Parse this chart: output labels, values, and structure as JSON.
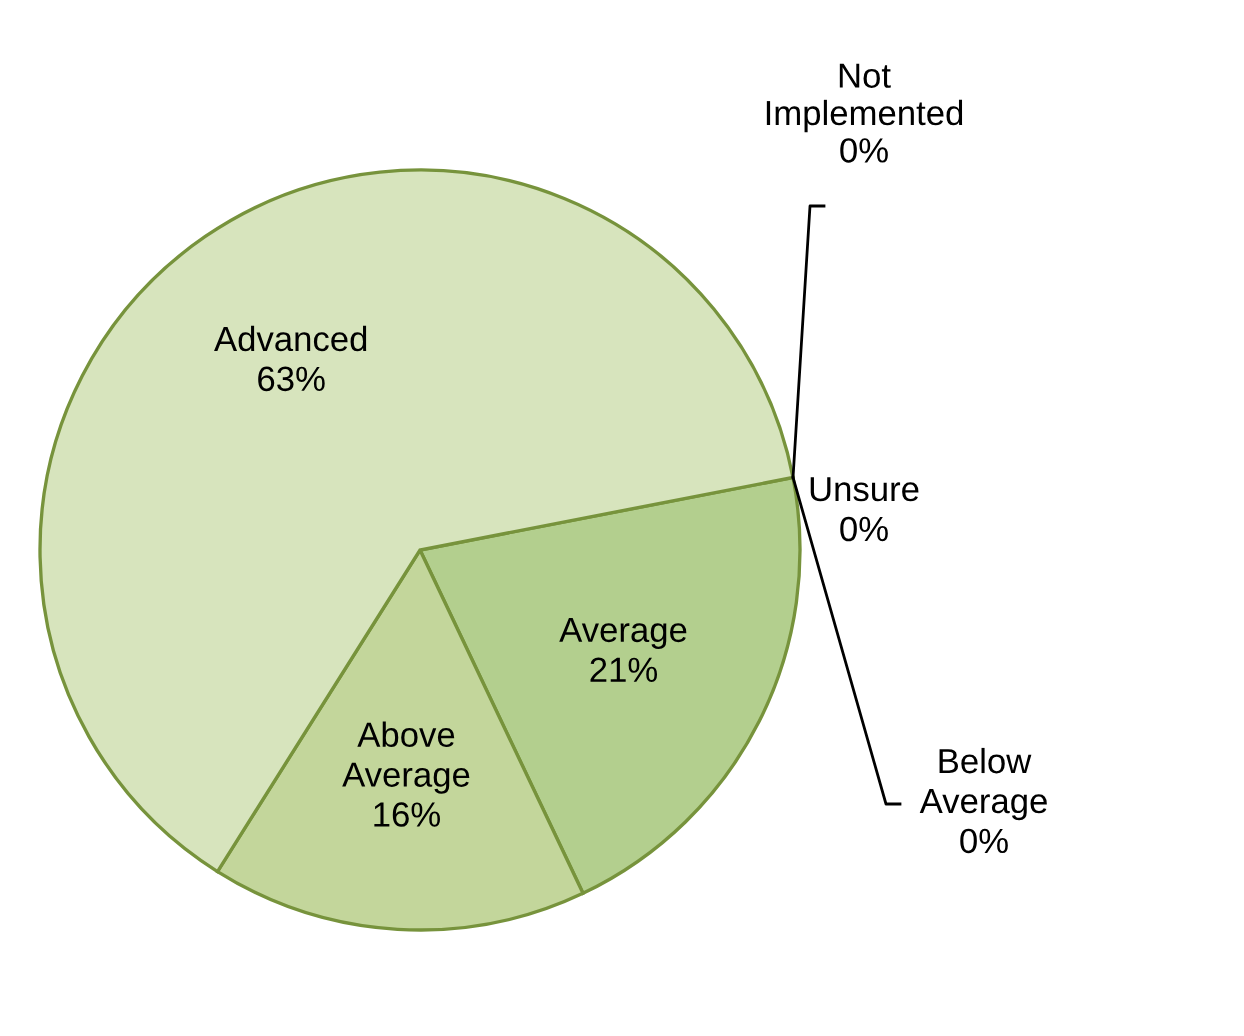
{
  "chart_data": {
    "type": "pie",
    "categories": [
      "Average",
      "Above Average",
      "Advanced",
      "Not Implemented",
      "Unsure",
      "Below Average"
    ],
    "values": [
      21,
      16,
      63,
      0,
      0,
      0
    ],
    "colors": [
      "#b3cf8e",
      "#c3d69b",
      "#d7e4bd",
      "#d7e4bd",
      "#d7e4bd",
      "#d7e4bd"
    ],
    "value_labels": [
      "21%",
      "16%",
      "63%",
      "0%",
      "0%",
      "0%"
    ]
  }
}
